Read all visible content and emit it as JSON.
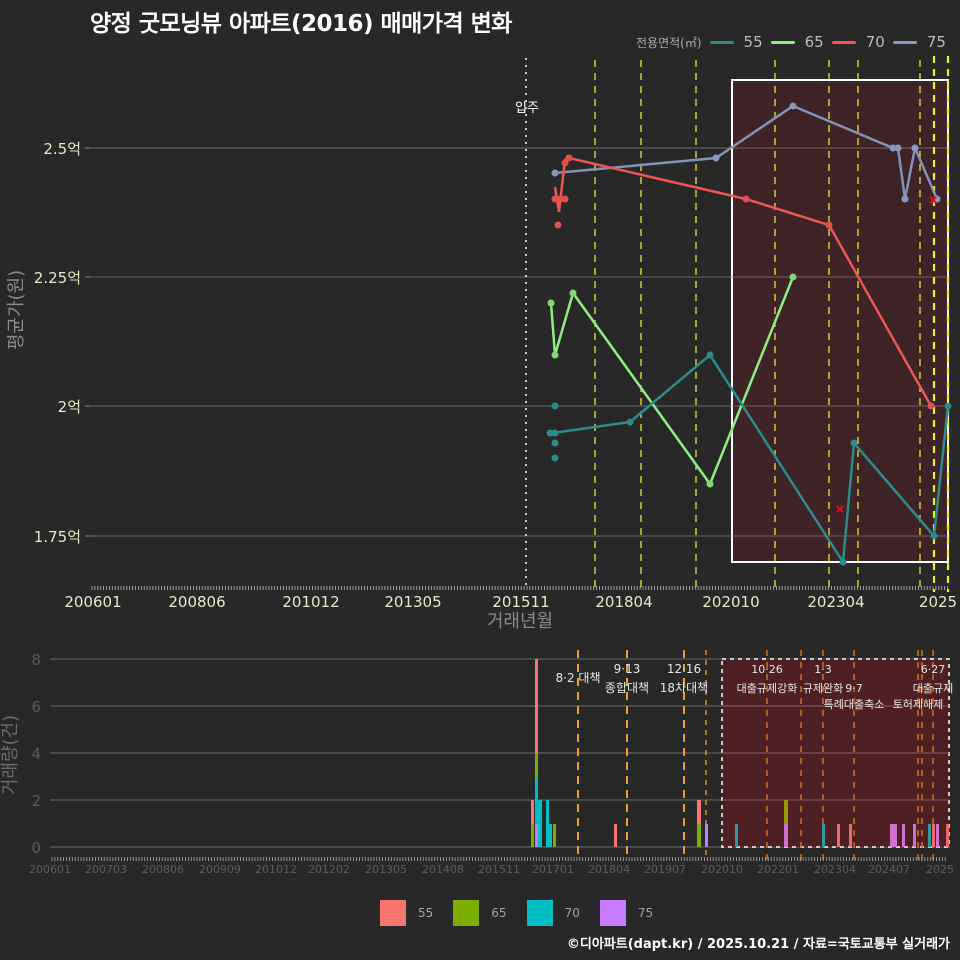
{
  "title": "양정 굿모닝뷰 아파트(2016) 매매가격 변화",
  "footer": "©디아파트(dapt.kr) / 2025.10.21 / 자료=국토교통부 실거래가",
  "legend_top": {
    "title": "전용면적(㎡)",
    "items": [
      {
        "label": "55",
        "color": "#2e8b8b"
      },
      {
        "label": "65",
        "color": "#90ee80"
      },
      {
        "label": "70",
        "color": "#ee5555"
      },
      {
        "label": "75",
        "color": "#8898c0"
      }
    ]
  },
  "legend_bottom": {
    "items": [
      {
        "label": "55",
        "color": "#f8766d"
      },
      {
        "label": "65",
        "color": "#7cae00"
      },
      {
        "label": "70",
        "color": "#00bfc4"
      },
      {
        "label": "75",
        "color": "#c77cff"
      }
    ]
  },
  "price_chart": {
    "ylabel": "평균가(원)",
    "xlabel": "거래년월",
    "yticks": [
      "2.5억",
      "2.25억",
      "2억",
      "1.75억"
    ],
    "xticks": [
      "200601",
      "200806",
      "201012",
      "201305",
      "201511",
      "201804",
      "202010",
      "202304",
      "2025"
    ],
    "annotation": "입주"
  },
  "volume_chart": {
    "ylabel": "거래량(건)",
    "yticks": [
      "8",
      "6",
      "4",
      "2",
      "0"
    ],
    "xticks": [
      "200601",
      "200703",
      "200806",
      "200909",
      "201012",
      "201202",
      "201305",
      "201408",
      "201511",
      "201701",
      "201804",
      "201907",
      "202010",
      "202201",
      "202304",
      "202407",
      "2025"
    ],
    "policy_labels": [
      {
        "date": "8·2 대책",
        "name": ""
      },
      {
        "date": "9·13",
        "name": "종합대책"
      },
      {
        "date": "12·16",
        "name": "18차대책"
      },
      {
        "date": "10·26",
        "name": "대출규제강화"
      },
      {
        "date": "1·3",
        "name": "규제완화"
      },
      {
        "date": "9·7",
        "name": "특례대출축소"
      },
      {
        "date": "6·27",
        "name": "대출규제"
      },
      {
        "date": "",
        "name": "토허제해제"
      }
    ]
  },
  "chart_data": [
    {
      "type": "line",
      "title": "양정 굿모닝뷰 아파트(2016) 매매가격 변화",
      "xlabel": "거래년월",
      "ylabel": "평균가(원)",
      "ylim": [
        1.66,
        2.64
      ],
      "series": [
        {
          "name": "55",
          "points": [
            [
              "201612",
              1.95
            ],
            [
              "201612",
              1.93
            ],
            [
              "201612",
              1.9
            ],
            [
              "201612",
              2.0
            ],
            [
              "201712",
              1.97
            ],
            [
              "202007",
              2.1
            ],
            [
              "202305",
              1.7
            ],
            [
              "202310",
              1.93
            ],
            [
              "202503",
              1.75
            ],
            [
              "202510",
              2.0
            ]
          ]
        },
        {
          "name": "65",
          "points": [
            [
              "201611",
              2.2
            ],
            [
              "201612",
              2.1
            ],
            [
              "201704",
              2.22
            ],
            [
              "202007",
              1.85
            ],
            [
              "202201",
              2.25
            ]
          ]
        },
        {
          "name": "70",
          "points": [
            [
              "201701",
              2.42
            ],
            [
              "201701",
              2.4
            ],
            [
              "201702",
              2.35
            ],
            [
              "201703",
              2.4
            ],
            [
              "201703",
              2.47
            ],
            [
              "201704",
              2.48
            ],
            [
              "202105",
              2.4
            ],
            [
              "202303",
              2.35
            ],
            [
              "202504",
              2.0
            ]
          ]
        },
        {
          "name": "75",
          "points": [
            [
              "201701",
              2.45
            ],
            [
              "202009",
              2.48
            ],
            [
              "202201",
              2.58
            ],
            [
              "202411",
              2.5
            ],
            [
              "202412",
              2.5
            ],
            [
              "202502",
              2.4
            ],
            [
              "202505",
              2.5
            ],
            [
              "202510",
              2.4
            ]
          ]
        }
      ]
    },
    {
      "type": "bar",
      "title": "거래량",
      "ylabel": "거래량(건)",
      "ylim": [
        0,
        8
      ],
      "series": [
        {
          "name": "55",
          "values": [
            [
              "201612",
              5
            ],
            [
              "201611",
              1
            ],
            [
              "201806",
              1
            ],
            [
              "202004",
              1
            ],
            [
              "202304",
              1
            ],
            [
              "202306",
              1
            ],
            [
              "202509",
              1
            ]
          ]
        },
        {
          "name": "65",
          "values": [
            [
              "201611",
              1
            ],
            [
              "201612",
              1
            ],
            [
              "201704",
              1
            ],
            [
              "202004",
              1
            ],
            [
              "202203",
              1
            ]
          ]
        },
        {
          "name": "70",
          "values": [
            [
              "201612",
              2
            ],
            [
              "201701",
              2
            ],
            [
              "201703",
              1
            ],
            [
              "202011",
              1
            ],
            [
              "202302",
              1
            ],
            [
              "202503",
              1
            ]
          ]
        },
        {
          "name": "75",
          "values": [
            [
              "201612",
              1
            ],
            [
              "202006",
              1
            ],
            [
              "202203",
              1
            ],
            [
              "202411",
              2
            ],
            [
              "202501",
              1
            ],
            [
              "202504",
              1
            ],
            [
              "202507",
              1
            ]
          ]
        }
      ]
    }
  ]
}
